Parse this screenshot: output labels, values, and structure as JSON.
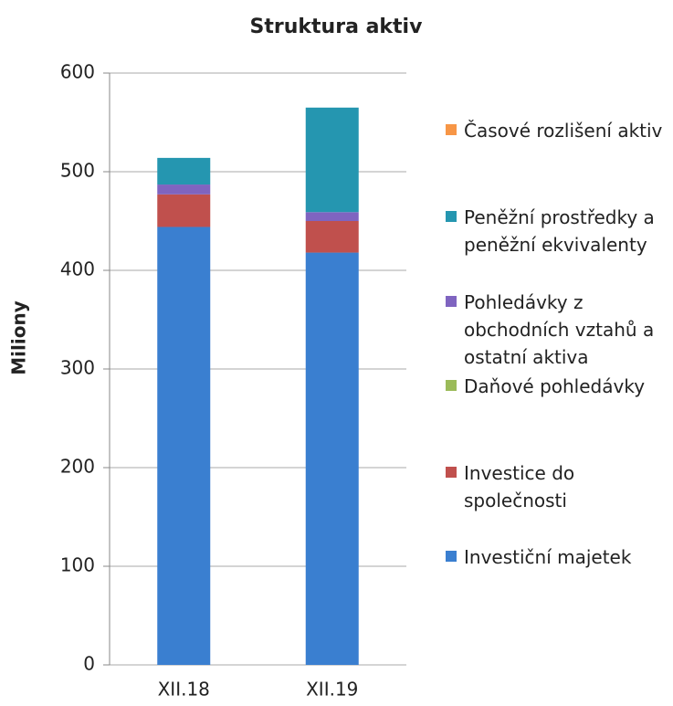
{
  "chart_data": {
    "type": "stacked_bar",
    "title": "Struktura aktiv",
    "y_label": "Miliony",
    "categories": [
      "XII.18",
      "XII.19"
    ],
    "series": [
      {
        "name": "Investiční majetek",
        "color": "#3a7fd0",
        "values": [
          444,
          418
        ]
      },
      {
        "name": "Investice do společnosti",
        "color": "#c0504d",
        "values": [
          33,
          32
        ]
      },
      {
        "name": "Daňové pohledávky",
        "color": "#9bbb59",
        "values": [
          0,
          0
        ]
      },
      {
        "name": "Pohledávky z obchodních vztahů a ostatní aktiva",
        "color": "#7f64c0",
        "values": [
          10,
          9
        ]
      },
      {
        "name": "Peněžní prostředky a peněžní ekvivalenty",
        "color": "#2596b0",
        "values": [
          27,
          106
        ]
      },
      {
        "name": "Časové rozlišení aktiv",
        "color": "#f79646",
        "values": [
          0,
          0
        ]
      }
    ],
    "ylim": [
      0,
      600
    ],
    "yticks": [
      0,
      100,
      200,
      300,
      400,
      500,
      600
    ],
    "grid": true
  }
}
